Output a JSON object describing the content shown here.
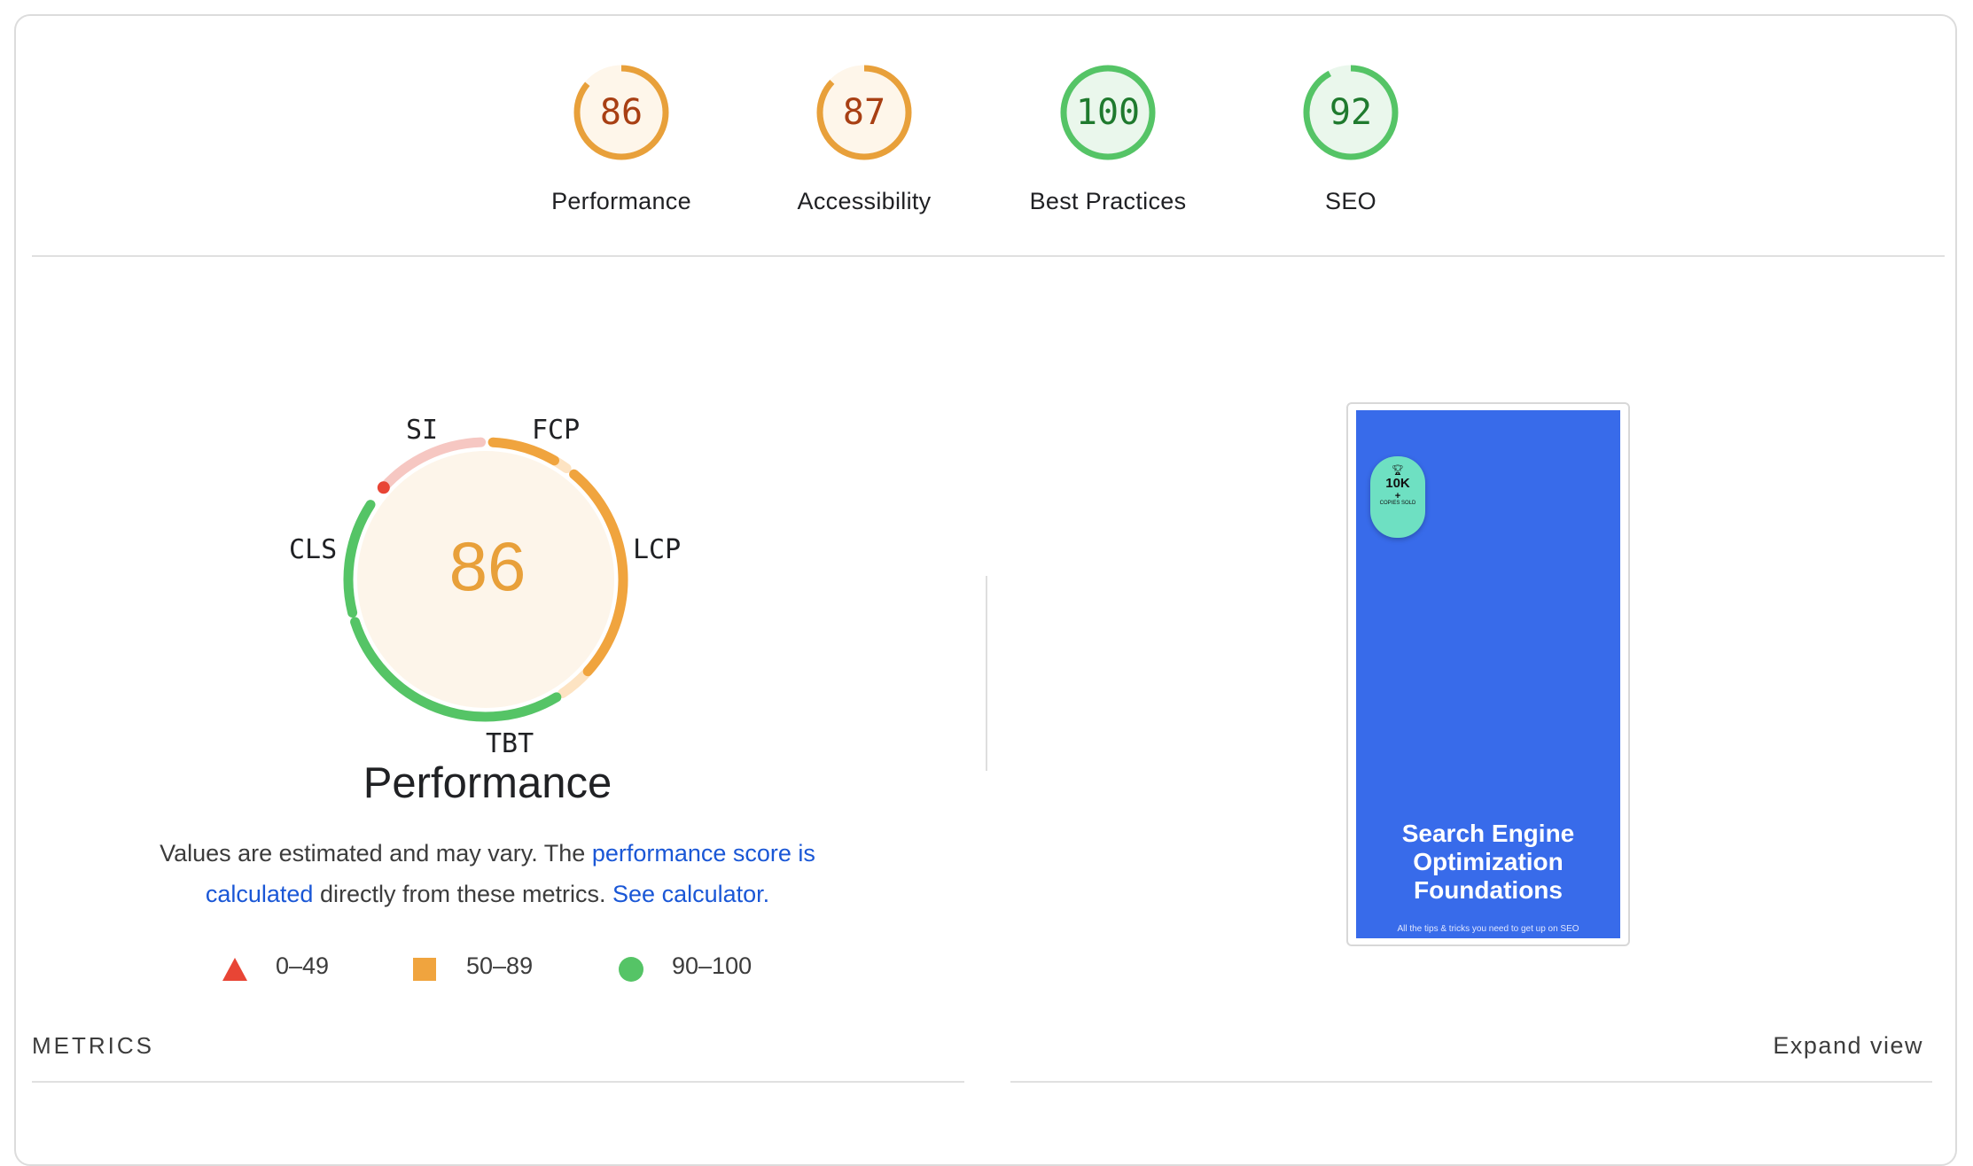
{
  "categories": [
    {
      "score": "86",
      "value": 86,
      "label": "Performance",
      "color": "#e8a03a",
      "text_color": "#a83f13",
      "fill": "#fef6ea"
    },
    {
      "score": "87",
      "value": 87,
      "label": "Accessibility",
      "color": "#e8a03a",
      "text_color": "#a83f13",
      "fill": "#fef6ea"
    },
    {
      "score": "100",
      "value": 100,
      "label": "Best Practices",
      "color": "#55c466",
      "text_color": "#1f7a2e",
      "fill": "#eaf7ec"
    },
    {
      "score": "92",
      "value": 92,
      "label": "SEO",
      "color": "#55c466",
      "text_color": "#1f7a2e",
      "fill": "#eaf7ec"
    }
  ],
  "performance": {
    "score": "86",
    "title": "Performance",
    "metrics": {
      "si": "SI",
      "fcp": "FCP",
      "lcp": "LCP",
      "tbt": "TBT",
      "cls": "CLS"
    },
    "description": {
      "text1": "Values are estimated and may vary. The ",
      "link1": "performance score is calculated",
      "text2": " directly from these metrics. ",
      "link2": "See calculator."
    },
    "legend": [
      {
        "range": "0–49",
        "color": "#e84535",
        "shape": "triangle"
      },
      {
        "range": "50–89",
        "color": "#f0a43e",
        "shape": "square"
      },
      {
        "range": "90–100",
        "color": "#55c466",
        "shape": "circle"
      }
    ]
  },
  "metrics_section": {
    "title": "METRICS",
    "expand_label": "Expand view"
  },
  "screenshot": {
    "badge_top": "10K",
    "badge_plus": "+",
    "badge_small": "COPIES SOLD",
    "title": "Search Engine Optimization Foundations",
    "subtitle": "All the tips & tricks you need to get up on SEO",
    "background": "#386bea"
  }
}
